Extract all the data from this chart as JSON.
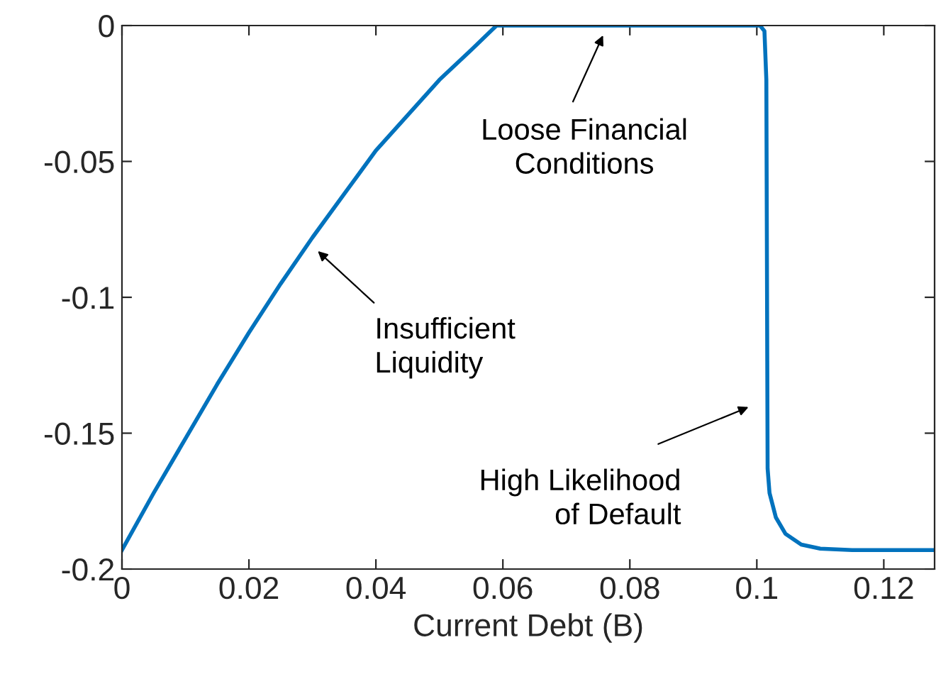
{
  "chart_data": {
    "type": "line",
    "xlabel": "Current Debt (B)",
    "xlim": [
      0,
      0.128
    ],
    "ylim": [
      -0.2,
      0
    ],
    "xticks": [
      0,
      0.02,
      0.04,
      0.06,
      0.08,
      0.1,
      0.12
    ],
    "yticks": [
      -0.2,
      -0.15,
      -0.1,
      -0.05,
      0
    ],
    "grid": false,
    "legend": false,
    "series": [
      {
        "color": "#0072bd",
        "x": [
          0,
          0.005,
          0.01,
          0.015,
          0.02,
          0.025,
          0.03,
          0.035,
          0.04,
          0.045,
          0.05,
          0.055,
          0.059,
          0.07,
          0.08,
          0.09,
          0.1005,
          0.1012,
          0.1015,
          0.1017,
          0.102,
          0.103,
          0.1045,
          0.107,
          0.11,
          0.115,
          0.128
        ],
        "values": [
          -0.193,
          -0.172,
          -0.152,
          -0.132,
          -0.113,
          -0.095,
          -0.078,
          -0.062,
          -0.046,
          -0.033,
          -0.02,
          -0.009,
          0,
          0,
          0,
          0,
          0,
          -0.002,
          -0.02,
          -0.163,
          -0.172,
          -0.181,
          -0.187,
          -0.191,
          -0.1925,
          -0.193,
          -0.193
        ]
      }
    ],
    "annotations": [
      "Loose Financial\nConditions",
      "Insufficient\nLiquidity",
      "High Likelihood\nof Default"
    ]
  }
}
